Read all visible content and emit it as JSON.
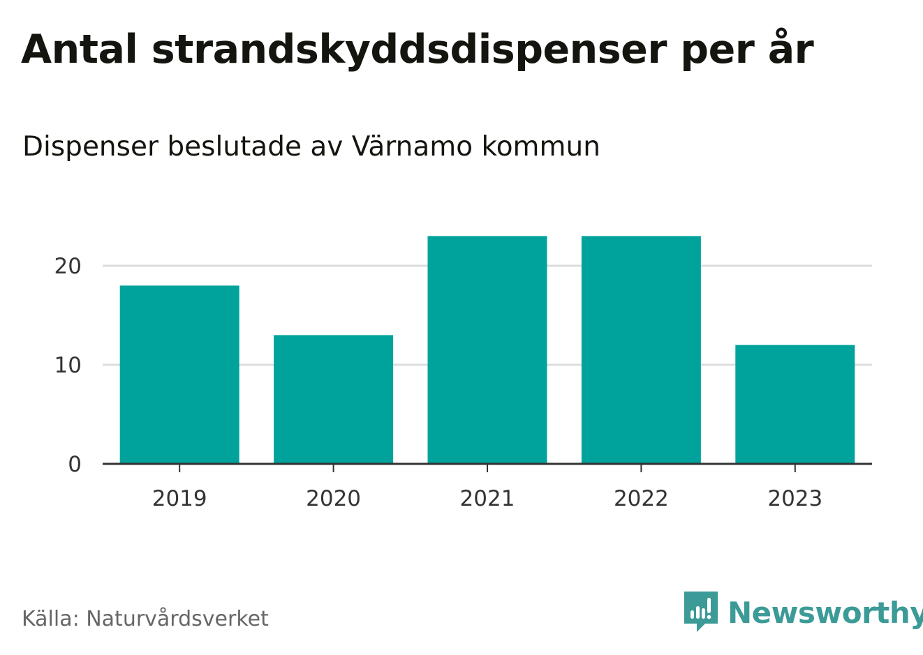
{
  "chart_data": {
    "type": "bar",
    "title": "Antal strandskyddsdispenser per år",
    "subtitle": "Dispenser beslutade av Värnamo kommun",
    "categories": [
      "2019",
      "2020",
      "2021",
      "2022",
      "2023"
    ],
    "values": [
      18,
      13,
      23,
      23,
      12
    ],
    "y_ticks": [
      "0",
      "10",
      "20"
    ],
    "ylim": [
      0,
      23
    ],
    "xlabel": "",
    "ylabel": "",
    "grid": true,
    "legend": "none",
    "bar_color": "#00a39b",
    "grid_color": "#dddddd",
    "axis_color": "#333333"
  },
  "footer": {
    "source": "Källa: Naturvårdsverket",
    "brand_name": "Newsworthy",
    "brand_icon": "newsworthy-logo-icon",
    "brand_color": "#3c9a97"
  }
}
